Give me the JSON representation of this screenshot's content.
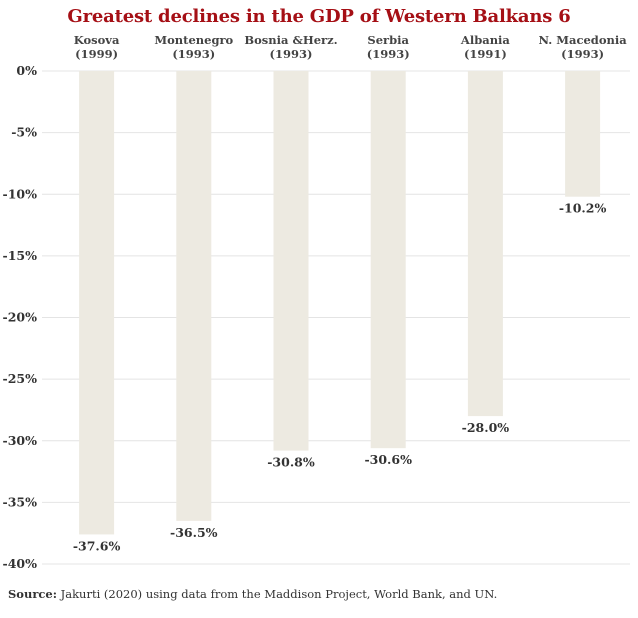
{
  "chart_data": {
    "type": "bar",
    "title": "Greatest declines in the GDP of Western Balkans 6",
    "categories": [
      {
        "name": "Kosova",
        "year": "(1999)"
      },
      {
        "name": "Montenegro",
        "year": "(1993)"
      },
      {
        "name": "Bosnia &Herz.",
        "year": "(1993)"
      },
      {
        "name": "Serbia",
        "year": "(1993)"
      },
      {
        "name": "Albania",
        "year": "(1991)"
      },
      {
        "name": "N. Macedonia",
        "year": "(1993)"
      }
    ],
    "values": [
      -37.6,
      -36.5,
      -30.8,
      -30.6,
      -28.0,
      -10.2
    ],
    "value_labels": [
      "-37.6%",
      "-36.5%",
      "-30.8%",
      "-30.6%",
      "-28.0%",
      "-10.2%"
    ],
    "yticks": [
      "0%",
      "-5%",
      "-10%",
      "-15%",
      "-20%",
      "-25%",
      "-30%",
      "-35%",
      "-40%"
    ],
    "ytick_values": [
      0,
      -5,
      -10,
      -15,
      -20,
      -25,
      -30,
      -35,
      -40
    ],
    "ylim": [
      -40,
      0
    ],
    "grid": true,
    "colors": {
      "bar": "#edeae1",
      "title": "#a50f15",
      "grid": "#e4e4e4"
    }
  },
  "source": {
    "label": "Source:",
    "text": " Jakurti (2020) using data from the Maddison Project, World Bank, and UN."
  }
}
